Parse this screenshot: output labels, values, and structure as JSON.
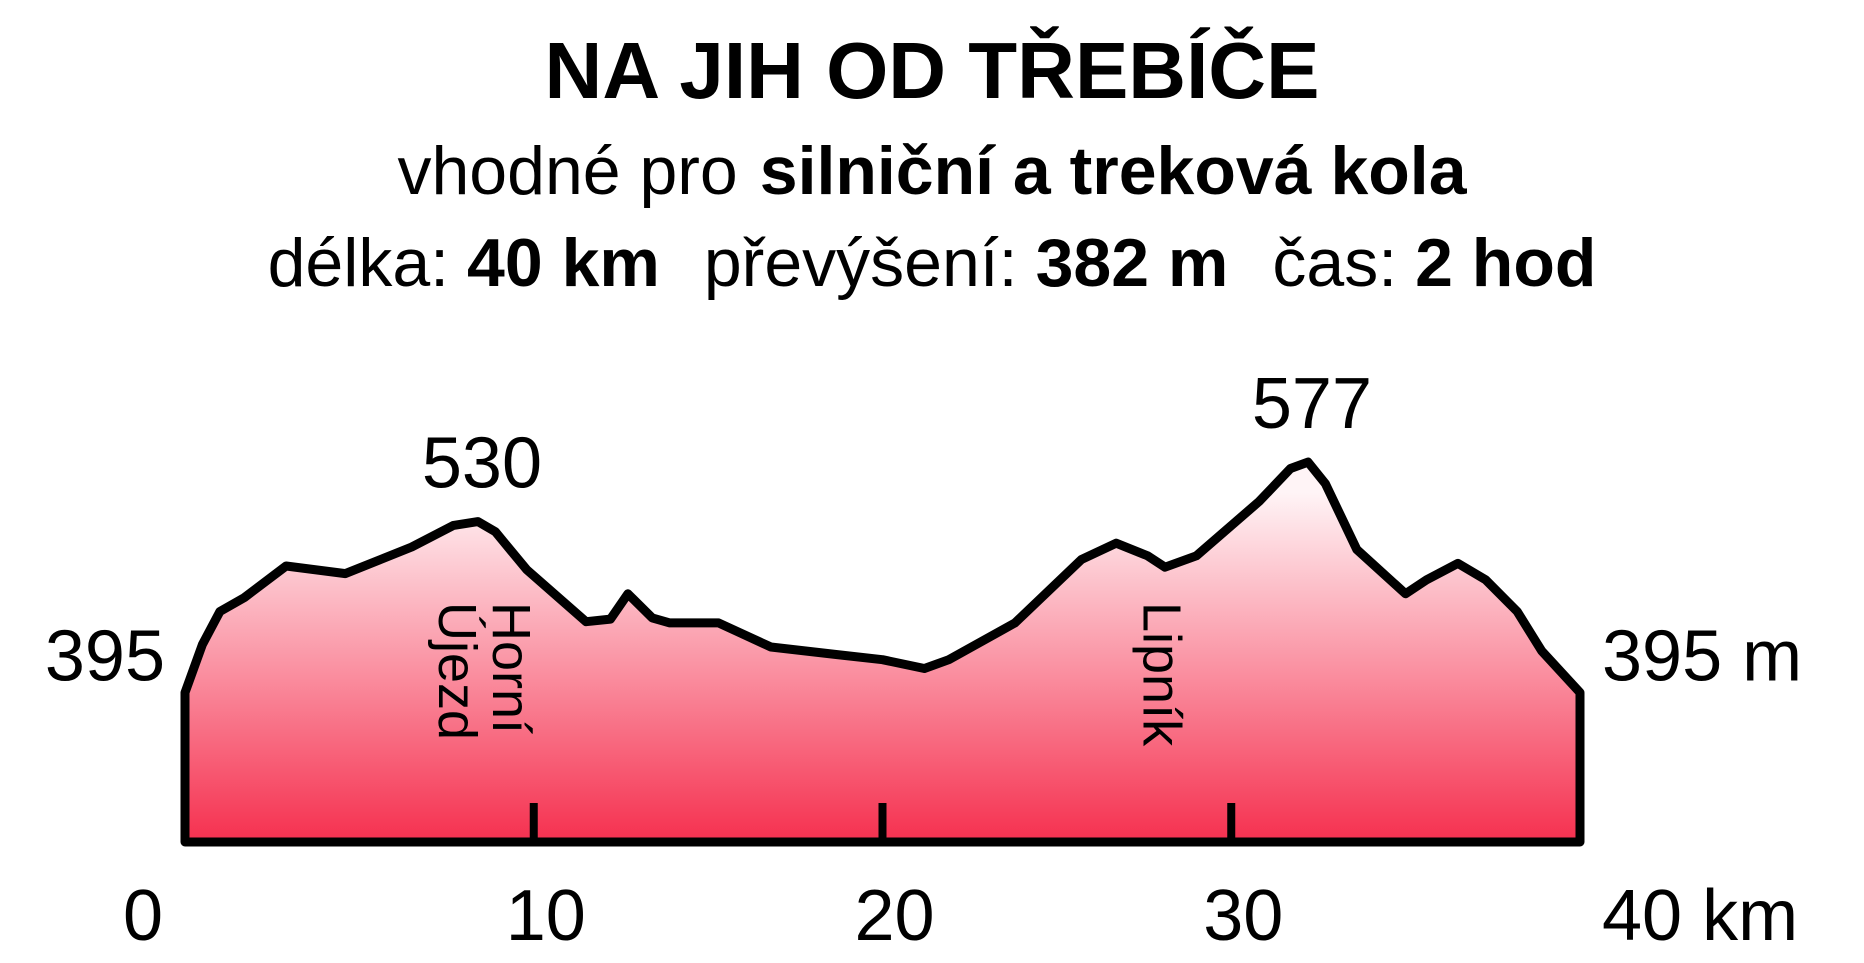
{
  "chart_data": {
    "type": "area",
    "title": "NA JIH OD TŘEBÍČE",
    "subtitle": {
      "text": "vhodné pro",
      "bold": "silniční a treková kola"
    },
    "stats": [
      {
        "label": "délka:",
        "value": "40 km"
      },
      {
        "label": "převýšení:",
        "value": "382 m"
      },
      {
        "label": "čas:",
        "value": "2 hod"
      }
    ],
    "x": [
      0,
      0.5,
      1.0,
      1.7,
      2.9,
      4.6,
      6.5,
      7.7,
      8.4,
      8.9,
      9.8,
      11.5,
      12.2,
      12.7,
      13.4,
      13.9,
      15.3,
      16.8,
      18.7,
      20.0,
      21.2,
      21.9,
      23.8,
      25.7,
      26.7,
      27.6,
      28.1,
      29.0,
      30.8,
      31.7,
      32.2,
      32.7,
      33.6,
      35.0,
      35.6,
      36.5,
      37.3,
      38.2,
      38.9,
      40.0
    ],
    "y": [
      395,
      433,
      459,
      470,
      495,
      489,
      510,
      527,
      530,
      522,
      492,
      451,
      453,
      473,
      454,
      450,
      450,
      431,
      425,
      421,
      414,
      421,
      450,
      500,
      513,
      503,
      494,
      503,
      546,
      572,
      577,
      560,
      508,
      473,
      484,
      497,
      484,
      459,
      428,
      395
    ],
    "xlim": [
      0,
      40
    ],
    "ylim": [
      277,
      600
    ],
    "xticks": [
      0,
      10,
      20,
      30,
      {
        "value": 40,
        "label": "40 km"
      }
    ],
    "point_labels": [
      {
        "x": 0,
        "value": 395,
        "label": "395"
      },
      {
        "x": 8.4,
        "value": 530,
        "label": "530"
      },
      {
        "x": 32.2,
        "value": 577,
        "label": "577"
      },
      {
        "x": 40,
        "value": 395,
        "label": "395 m"
      }
    ],
    "annotations": [
      {
        "x": 8.6,
        "text": [
          "Horní",
          "Újezd"
        ]
      },
      {
        "x": 28.0,
        "text": [
          "Lipník"
        ]
      }
    ],
    "colors": {
      "top": "#fff4f6",
      "bottom": "#f5304f",
      "line": "#000000"
    }
  }
}
